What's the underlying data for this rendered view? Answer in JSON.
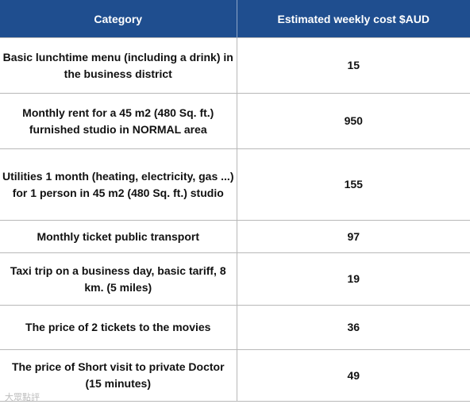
{
  "table": {
    "headers": [
      "Category",
      "Estimated weekly cost $AUD"
    ],
    "rows": [
      {
        "category": "Basic lunchtime menu (including a drink) in the business district",
        "cost": "15"
      },
      {
        "category": "Monthly rent for a 45 m2 (480 Sq. ft.) furnished studio in NORMAL area",
        "cost": "950"
      },
      {
        "category": "Utilities 1 month (heating, electricity, gas ...) for 1 person in 45 m2 (480 Sq. ft.) studio",
        "cost": "155"
      },
      {
        "category": "Monthly ticket public transport",
        "cost": "97"
      },
      {
        "category": "Taxi trip on a business day, basic tariff, 8 km. (5 miles)",
        "cost": "19"
      },
      {
        "category": "The price of 2 tickets to the movies",
        "cost": "36"
      },
      {
        "category": "The price of Short visit to private Doctor (15 minutes)",
        "cost": "49"
      }
    ]
  },
  "watermark": "大眾點評"
}
